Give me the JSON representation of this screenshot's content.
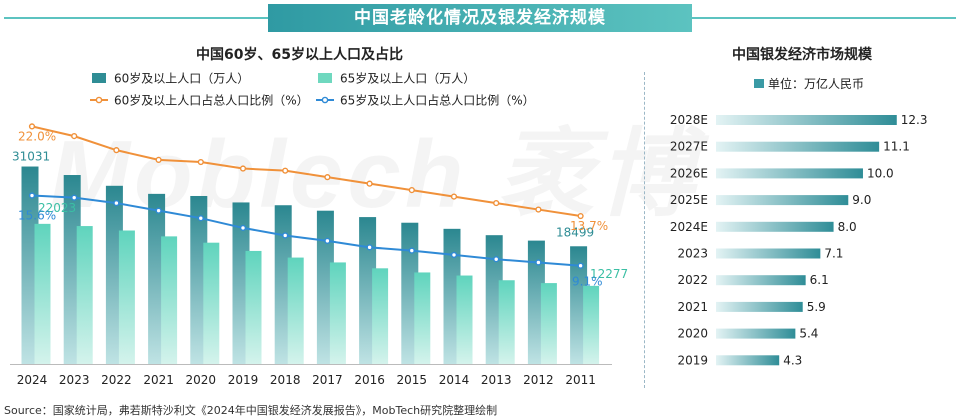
{
  "header": {
    "title": "中国老龄化情况及银发经济规模"
  },
  "colors": {
    "bar60": "#2f8d95",
    "bar65": "#6fd8bf",
    "line60": "#f0913a",
    "line65": "#2f8ad6",
    "rightBar": "#4aa6b0"
  },
  "watermark_text": "Mob",
  "source": "Source：国家统计局，弗若斯特沙利文《2024年中国银发经济发展报告》，MobTech研究院整理绘制",
  "chart_data": [
    {
      "type": "bar",
      "title": "中国60岁、65岁以上人口及占比",
      "categories": [
        "2024",
        "2023",
        "2022",
        "2021",
        "2020",
        "2019",
        "2018",
        "2017",
        "2016",
        "2015",
        "2014",
        "2013",
        "2012",
        "2011"
      ],
      "series": [
        {
          "name": "60岁及以上人口（万人）",
          "kind": "bar",
          "values": [
            31031,
            29697,
            28004,
            26736,
            26402,
            25388,
            24949,
            24090,
            23086,
            22200,
            21242,
            20243,
            19390,
            18499
          ]
        },
        {
          "name": "65岁及以上人口（万人）",
          "kind": "bar",
          "values": [
            22023,
            21676,
            20978,
            20056,
            19064,
            17767,
            16724,
            15961,
            15037,
            14386,
            13902,
            13161,
            12714,
            12277
          ]
        },
        {
          "name": "60岁及以上人口占总人口比例（%）",
          "kind": "line",
          "values": [
            22.0,
            21.1,
            19.8,
            18.9,
            18.7,
            18.1,
            17.9,
            17.3,
            16.7,
            16.1,
            15.5,
            14.9,
            14.3,
            13.7
          ]
        },
        {
          "name": "65岁及以上人口占总人口比例（%）",
          "kind": "line",
          "values": [
            15.6,
            15.4,
            14.9,
            14.2,
            13.5,
            12.6,
            11.9,
            11.4,
            10.8,
            10.5,
            10.1,
            9.7,
            9.4,
            9.1
          ]
        }
      ],
      "data_labels": {
        "first_bar60": "31031",
        "first_bar65": "22023",
        "first_line60": "22.0%",
        "first_line65": "15.6%",
        "last_bar60": "18499",
        "last_bar65": "12277",
        "last_line60": "13.7%",
        "last_line65": "9.1%"
      },
      "legend": [
        "60岁及以上人口（万人）",
        "65岁及以上人口（万人）",
        "60岁及以上人口占总人口比例（%）",
        "65岁及以上人口占总人口比例（%）"
      ],
      "legend_position": "top",
      "ylim_bars": [
        0,
        33000
      ],
      "ylim_lines": [
        0,
        25
      ],
      "grid": false
    },
    {
      "type": "bar",
      "orientation": "horizontal",
      "title": "中国银发经济市场规模",
      "unit_legend": "单位：万亿人民币",
      "categories": [
        "2028E",
        "2027E",
        "2026E",
        "2025E",
        "2024E",
        "2023",
        "2022",
        "2021",
        "2020",
        "2019"
      ],
      "values": [
        12.3,
        11.1,
        10.0,
        9.0,
        8.0,
        7.1,
        6.1,
        5.9,
        5.4,
        4.3
      ],
      "labels": [
        "12.3",
        "11.1",
        "10.0",
        "9.0",
        "8.0",
        "7.1",
        "6.1",
        "5.9",
        "5.4",
        "4.3"
      ],
      "xlim": [
        0,
        13.2
      ],
      "grid": false
    }
  ]
}
